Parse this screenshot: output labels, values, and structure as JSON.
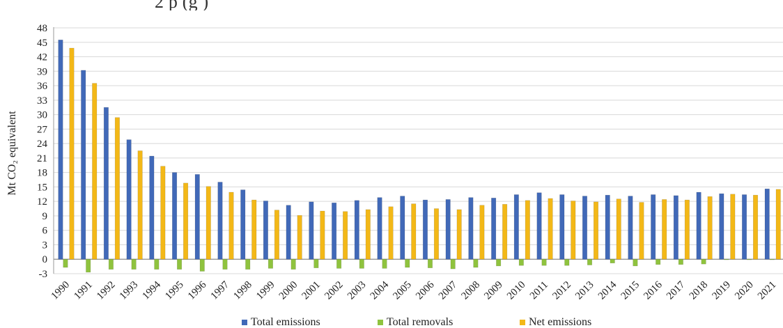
{
  "title_fragment": "2 p (g )",
  "chart_data": {
    "type": "bar",
    "title": "",
    "xlabel": "",
    "ylabel": "Mt CO₂ equivalent",
    "ylim": [
      -3,
      48
    ],
    "ytick_values": [
      -3,
      0,
      3,
      6,
      9,
      12,
      15,
      18,
      21,
      24,
      27,
      30,
      33,
      36,
      39,
      42,
      45,
      48
    ],
    "grid": true,
    "legend_position": "bottom",
    "categories": [
      "1990",
      "1991",
      "1992",
      "1993",
      "1994",
      "1995",
      "1996",
      "1997",
      "1998",
      "1999",
      "2000",
      "2001",
      "2002",
      "2003",
      "2004",
      "2005",
      "2006",
      "2007",
      "2008",
      "2009",
      "2010",
      "2011",
      "2012",
      "2013",
      "2014",
      "2015",
      "2016",
      "2017",
      "2018",
      "2019",
      "2020",
      "2021"
    ],
    "series": [
      {
        "name": "Total emissions",
        "color": "#4169b8",
        "values": [
          45.5,
          39.2,
          31.5,
          24.8,
          21.4,
          18.0,
          17.6,
          16.0,
          14.4,
          12.1,
          11.2,
          11.9,
          11.7,
          12.2,
          12.8,
          13.1,
          12.3,
          12.4,
          12.8,
          12.7,
          13.4,
          13.8,
          13.4,
          13.1,
          13.3,
          13.1,
          13.4,
          13.2,
          13.9,
          13.6,
          13.4,
          14.6
        ]
      },
      {
        "name": "Total removals",
        "color": "#8fc33e",
        "values": [
          -1.7,
          -2.7,
          -2.1,
          -2.1,
          -2.1,
          -2.1,
          -2.5,
          -2.1,
          -2.1,
          -1.9,
          -2.1,
          -1.8,
          -1.9,
          -1.9,
          -1.9,
          -1.7,
          -1.8,
          -2.0,
          -1.7,
          -1.4,
          -1.3,
          -1.3,
          -1.3,
          -1.2,
          -0.8,
          -1.4,
          -1.1,
          -1.1,
          -1.0,
          -0.1,
          -0.1,
          -0.1
        ]
      },
      {
        "name": "Net emissions",
        "color": "#f3b817",
        "values": [
          43.8,
          36.5,
          29.4,
          22.5,
          19.3,
          15.8,
          15.1,
          13.9,
          12.3,
          10.2,
          9.1,
          10.0,
          9.9,
          10.3,
          10.9,
          11.5,
          10.5,
          10.3,
          11.2,
          11.4,
          12.2,
          12.6,
          12.1,
          11.9,
          12.5,
          11.8,
          12.4,
          12.3,
          13.0,
          13.5,
          13.3,
          14.5
        ]
      }
    ]
  }
}
